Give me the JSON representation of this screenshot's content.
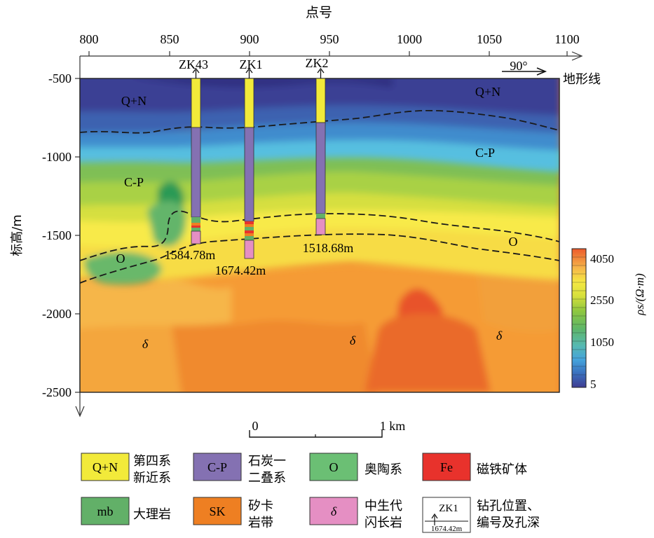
{
  "figure": {
    "top_axis_title": "点号",
    "left_axis_title": "标高/m",
    "terrain_label": "地形线",
    "orientation_label": "90°",
    "x_ticks": [
      "800",
      "850",
      "900",
      "950",
      "1000",
      "1050",
      "1100"
    ],
    "y_ticks": [
      "-500",
      "-1000",
      "-1500",
      "-2000",
      "-2500"
    ],
    "scalebar": {
      "start": "0",
      "end": "1 km"
    },
    "colorbar": {
      "title": "ρs/(Ω·m)",
      "ticks": [
        "4050",
        "2550",
        "1050",
        "5"
      ]
    },
    "formation_labels": {
      "qn_left": "Q+N",
      "qn_right": "Q+N",
      "cp_left": "C-P",
      "cp_right": "C-P",
      "o_left": "O",
      "o_right": "O",
      "delta_1": "δ",
      "delta_2": "δ",
      "delta_3": "δ"
    },
    "boreholes": [
      {
        "name": "ZK43",
        "depth_label": "1584.78m"
      },
      {
        "name": "ZK1",
        "depth_label": "1674.42m"
      },
      {
        "name": "ZK2",
        "depth_label": "1518.68m"
      }
    ]
  },
  "legend": [
    {
      "symbol": "Q+N",
      "line1": "第四系",
      "line2": "新近系",
      "color": "#f2ea3a"
    },
    {
      "symbol": "C-P",
      "line1": "石炭一",
      "line2": "二叠系",
      "color": "#8471b2"
    },
    {
      "symbol": "O",
      "line1": "奥陶系",
      "line2": "",
      "color": "#6bbf74"
    },
    {
      "symbol": "Fe",
      "line1": "磁铁矿体",
      "line2": "",
      "color": "#e8322c"
    },
    {
      "symbol": "mb",
      "line1": "大理岩",
      "line2": "",
      "color": "#62b068"
    },
    {
      "symbol": "SK",
      "line1": "矽卡",
      "line2": "岩带",
      "color": "#ee7f22"
    },
    {
      "symbol": "δ",
      "line1": "中生代",
      "line2": "闪长岩",
      "color": "#e58fc3"
    },
    {
      "symbol": "ZK1",
      "sub": "1674.42m",
      "line1": "钻孔位置、",
      "line2": "编号及孔深",
      "color": "#ffffff"
    }
  ],
  "colors": {
    "qn": "#f2ea3a",
    "cp": "#8471b2",
    "mb": "#62b068",
    "sk": "#ee7f22",
    "diorite": "#e58fc3",
    "fe": "#e8322c"
  }
}
